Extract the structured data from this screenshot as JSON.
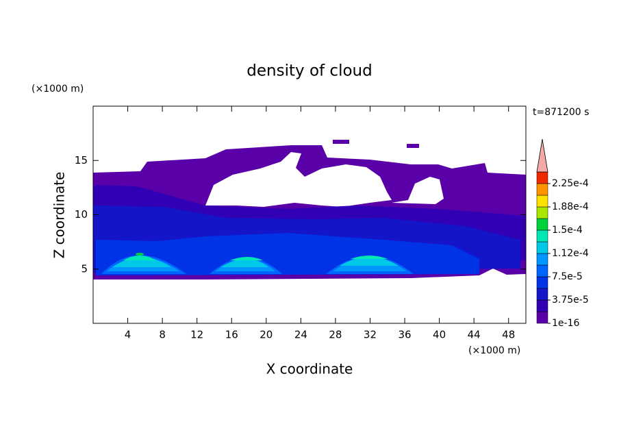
{
  "chart_data": {
    "type": "contour",
    "title": "density of cloud",
    "x_label": "X coordinate",
    "y_label": "Z coordinate",
    "x_unit": "(×1000 m)",
    "y_unit": "(×1000 m)",
    "time_label": "t=871200 s",
    "xlim": [
      0,
      50
    ],
    "ylim": [
      0,
      20
    ],
    "xticks": [
      4,
      8,
      12,
      16,
      20,
      24,
      28,
      32,
      36,
      40,
      44,
      48
    ],
    "yticks": [
      5,
      10,
      15
    ],
    "colorbar": {
      "levels": [
        1e-16,
        1.875e-05,
        3.75e-05,
        5.625e-05,
        7.5e-05,
        9.375e-05,
        0.0001125,
        0.00013125,
        0.00015,
        0.00016875,
        0.0001875,
        0.00020625,
        0.000225
      ],
      "colors": [
        "#5a00a8",
        "#3200b4",
        "#1414c8",
        "#0032e6",
        "#0064ff",
        "#0096ff",
        "#00c8e6",
        "#00e6b4",
        "#00d23c",
        "#aae600",
        "#ffe100",
        "#ff9600",
        "#f02800"
      ],
      "extend_color": "#f4a8a8",
      "ticks": [
        {
          "value": 1e-16,
          "label": "1e-16"
        },
        {
          "value": 3.75e-05,
          "label": "3.75e-5"
        },
        {
          "value": 7.5e-05,
          "label": "7.5e-5"
        },
        {
          "value": 0.0001125,
          "label": "1.12e-4"
        },
        {
          "value": 0.00015,
          "label": "1.5e-4"
        },
        {
          "value": 0.0001875,
          "label": "1.88e-4"
        },
        {
          "value": 0.000225,
          "label": "2.25e-4"
        }
      ]
    }
  }
}
